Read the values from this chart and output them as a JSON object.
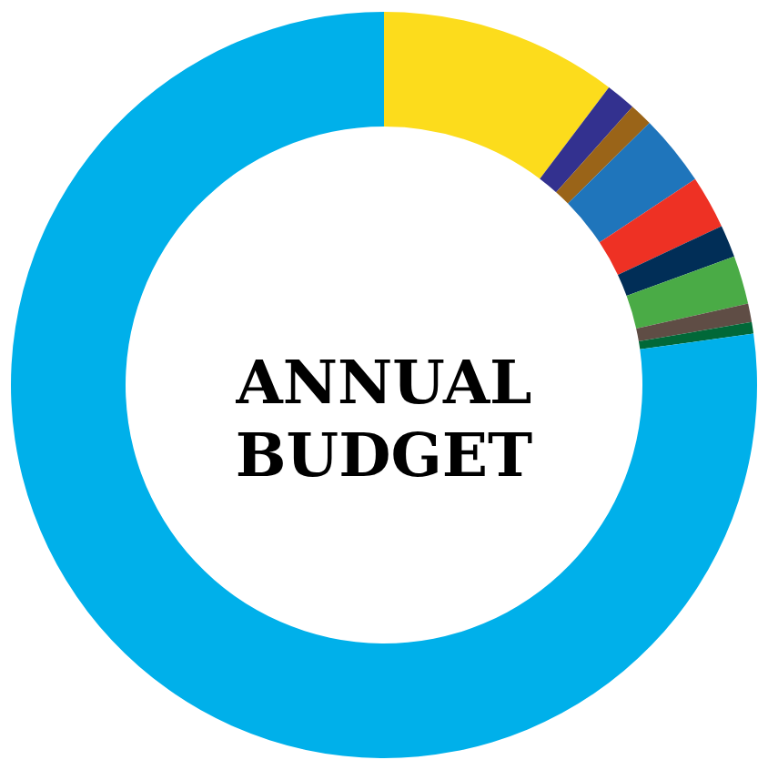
{
  "chart_data": {
    "type": "donut",
    "title": "ANNUAL BUDGET",
    "categories": [
      null,
      null,
      null,
      null,
      null,
      null,
      null,
      null,
      null,
      null
    ],
    "values": [
      10.3,
      1.3,
      1.0,
      3.1,
      2.3,
      1.4,
      2.1,
      0.8,
      0.5,
      77.2
    ],
    "colors": [
      "#fcdc1c",
      "#33318f",
      "#9a6418",
      "#1f75bb",
      "#ee3124",
      "#012e57",
      "#4aab46",
      "#5f4d45",
      "#016838",
      "#00b0ea"
    ]
  }
}
